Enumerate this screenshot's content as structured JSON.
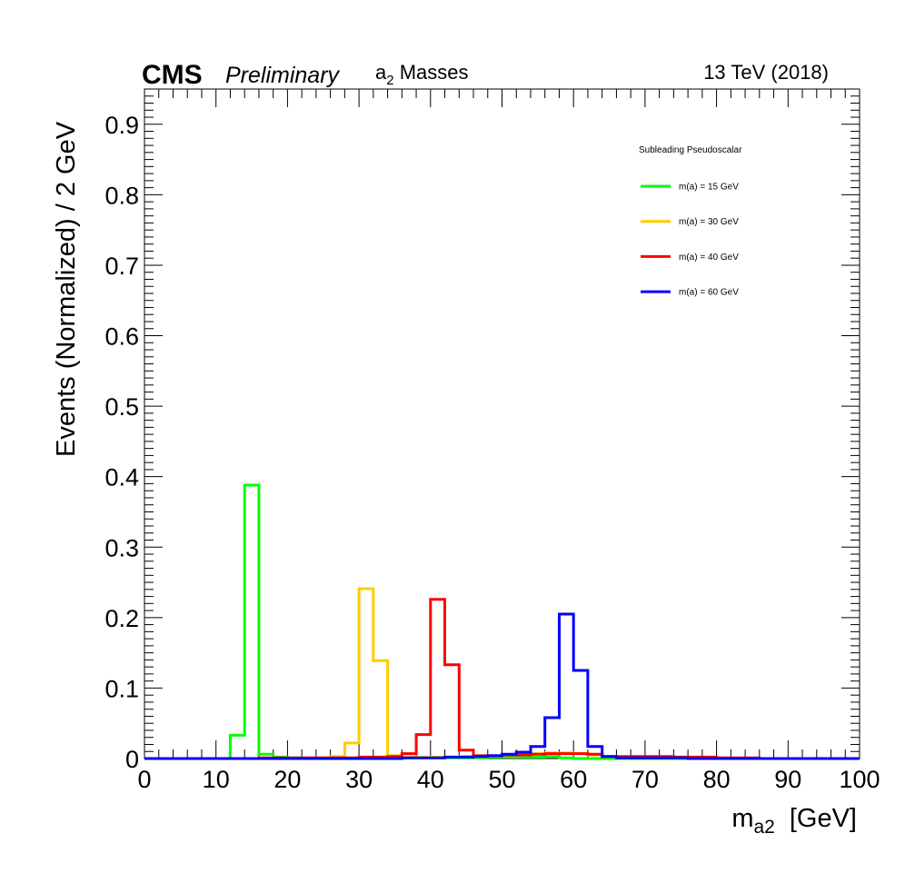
{
  "header": {
    "experiment": "CMS",
    "status": "Preliminary",
    "plot_label_main": "a",
    "plot_label_sub": "2",
    "plot_label_rest": " Masses",
    "energy": "13 TeV (2018)"
  },
  "axes": {
    "x_title_main": "m",
    "x_title_sub": "a2",
    "x_title_unit": "[GeV]",
    "y_title": "Events (Normalized) / 2 GeV"
  },
  "legend": {
    "title": "Subleading Pseudoscalar"
  },
  "chart_data": {
    "type": "line",
    "style": "step histogram",
    "title": "a2 Masses",
    "xlabel": "m_a2 [GeV]",
    "ylabel": "Events (Normalized) / 2 GeV",
    "xlim": [
      0,
      100
    ],
    "ylim": [
      0,
      0.95
    ],
    "x_ticks": [
      "0",
      "10",
      "20",
      "30",
      "40",
      "50",
      "60",
      "70",
      "80",
      "90",
      "100"
    ],
    "y_ticks": [
      "0",
      "0.1",
      "0.2",
      "0.3",
      "0.4",
      "0.5",
      "0.6",
      "0.7",
      "0.8",
      "0.9"
    ],
    "bin_edges": [
      0,
      2,
      4,
      6,
      8,
      10,
      12,
      14,
      16,
      18,
      20,
      22,
      24,
      26,
      28,
      30,
      32,
      34,
      36,
      38,
      40,
      42,
      44,
      46,
      48,
      50,
      52,
      54,
      56,
      58,
      60,
      62,
      64,
      66,
      68,
      70,
      72,
      74,
      76,
      78,
      80,
      82,
      84,
      86,
      88,
      90,
      92,
      94,
      96,
      98,
      100
    ],
    "grid": false,
    "legend_position": "top-right",
    "legend_title": "Subleading Pseudoscalar",
    "series": [
      {
        "name": "m(a) = 15 GeV",
        "color": "#00ff00",
        "values": [
          0,
          0,
          0,
          0,
          0,
          0,
          0.033,
          0.388,
          0.006,
          0.002,
          0.001,
          0.001,
          0.001,
          0.001,
          0.001,
          0.001,
          0.001,
          0.001,
          0.001,
          0.001,
          0.001,
          0.001,
          0.001,
          0.001,
          0.002,
          0.002,
          0.002,
          0.002,
          0.003,
          0.001,
          0,
          0,
          0,
          0,
          0,
          0,
          0,
          0,
          0,
          0,
          0,
          0,
          0,
          0,
          0,
          0,
          0,
          0,
          0,
          0
        ]
      },
      {
        "name": "m(a) = 30 GeV",
        "color": "#ffcc00",
        "values": [
          0,
          0,
          0,
          0,
          0,
          0,
          0,
          0,
          0,
          0,
          0,
          0,
          0.001,
          0.003,
          0.022,
          0.241,
          0.139,
          0.004,
          0.002,
          0.002,
          0.002,
          0.002,
          0.003,
          0.003,
          0.004,
          0.005,
          0.006,
          0.007,
          0.008,
          0.008,
          0.007,
          0.005,
          0.003,
          0.002,
          0.002,
          0.002,
          0.002,
          0.002,
          0.002,
          0.001,
          0.001,
          0,
          0,
          0,
          0,
          0,
          0,
          0,
          0,
          0
        ]
      },
      {
        "name": "m(a) = 40 GeV",
        "color": "#ff0000",
        "values": [
          0,
          0,
          0,
          0,
          0,
          0,
          0,
          0,
          0.001,
          0.001,
          0.001,
          0.001,
          0.001,
          0.001,
          0.001,
          0.002,
          0.002,
          0.003,
          0.007,
          0.034,
          0.226,
          0.133,
          0.012,
          0.004,
          0.004,
          0.005,
          0.005,
          0.006,
          0.007,
          0.007,
          0.007,
          0.006,
          0.003,
          0.003,
          0.003,
          0.003,
          0.003,
          0.002,
          0.002,
          0.002,
          0.001,
          0.001,
          0.001,
          0,
          0,
          0,
          0,
          0,
          0,
          0
        ]
      },
      {
        "name": "m(a) = 60 GeV",
        "color": "#0000ff",
        "values": [
          0,
          0,
          0,
          0,
          0,
          0,
          0,
          0,
          0,
          0,
          0,
          0,
          0,
          0,
          0,
          0,
          0,
          0,
          0.001,
          0.001,
          0.001,
          0.002,
          0.002,
          0.003,
          0.004,
          0.006,
          0.009,
          0.017,
          0.058,
          0.205,
          0.125,
          0.017,
          0.003,
          0.001,
          0.001,
          0.001,
          0.001,
          0.001,
          0,
          0,
          0,
          0,
          0,
          0,
          0,
          0,
          0,
          0,
          0,
          0
        ]
      }
    ]
  }
}
